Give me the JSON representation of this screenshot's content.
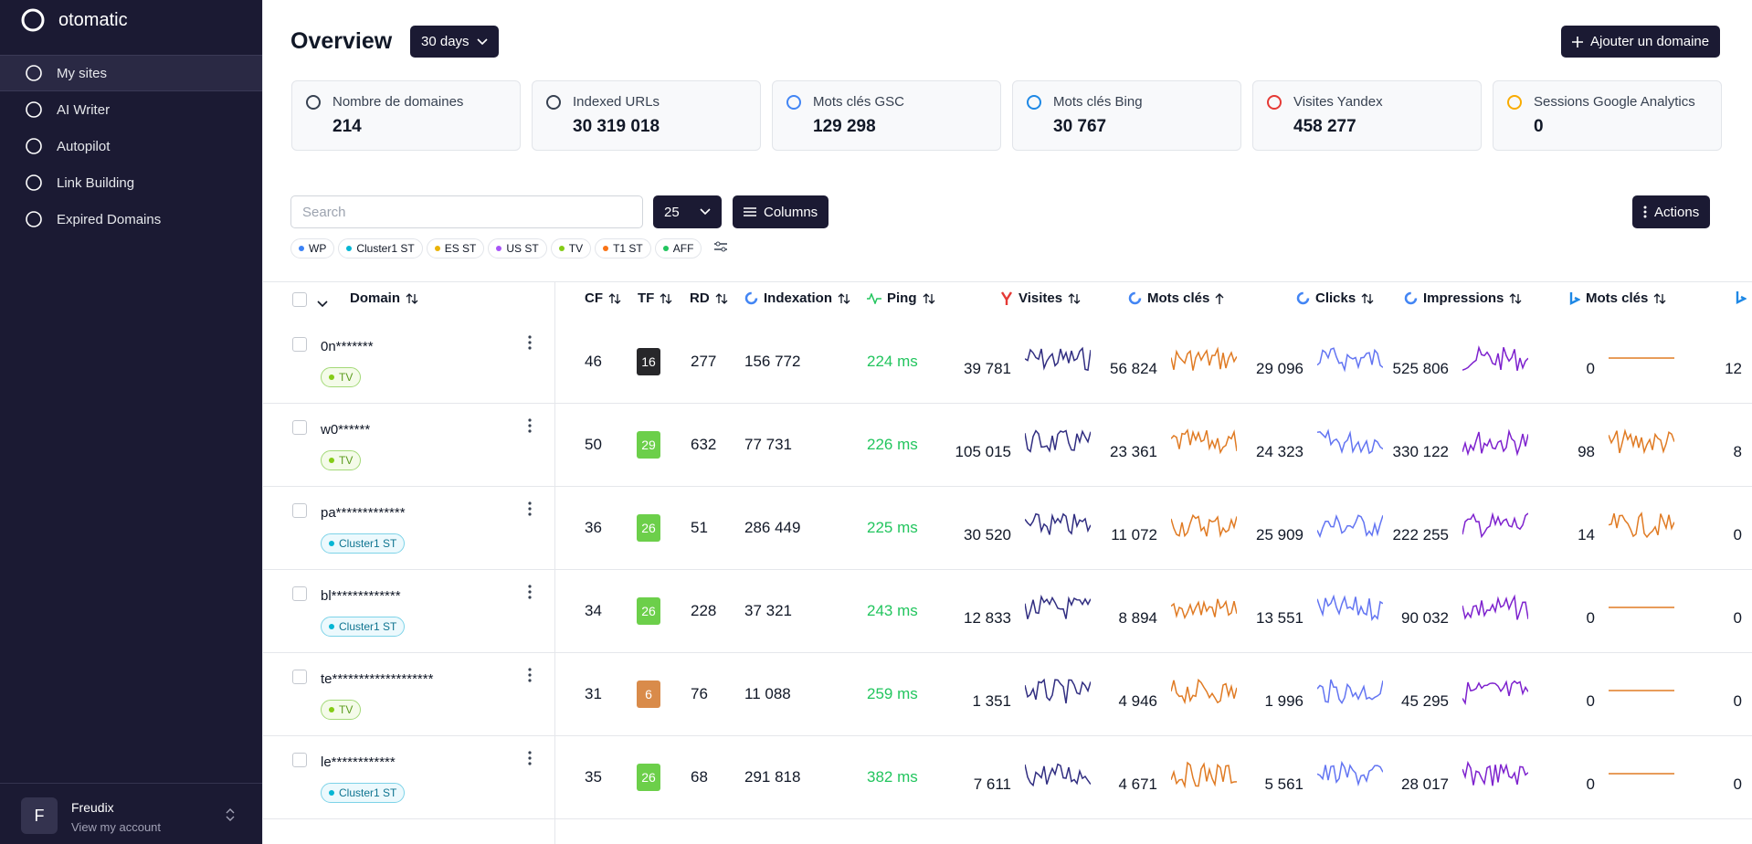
{
  "sidebar": {
    "brand": "otomatic",
    "nav": [
      "My sites",
      "AI Writer",
      "Autopilot",
      "Link Building",
      "Expired Domains"
    ],
    "user": {
      "initial": "F",
      "name": "Freudix",
      "link": "View my account"
    }
  },
  "header": {
    "title": "Overview",
    "period": "30 days",
    "add_button": "Ajouter un domaine"
  },
  "stats": [
    {
      "label": "Nombre de domaines",
      "value": "214"
    },
    {
      "label": "Indexed URLs",
      "value": "30 319 018"
    },
    {
      "label": "Mots clés GSC",
      "value": "129 298"
    },
    {
      "label": "Mots clés Bing",
      "value": "30 767"
    },
    {
      "label": "Visites Yandex",
      "value": "458 277"
    },
    {
      "label": "Sessions Google Analytics",
      "value": "0"
    }
  ],
  "toolbar": {
    "search_placeholder": "Search",
    "page_size": "25",
    "columns_button": "Columns",
    "actions_button": "Actions"
  },
  "filters": [
    {
      "label": "WP",
      "color": "#3b82f6"
    },
    {
      "label": "Cluster1 ST",
      "color": "#06b6d4"
    },
    {
      "label": "ES ST",
      "color": "#eab308"
    },
    {
      "label": "US ST",
      "color": "#a855f7"
    },
    {
      "label": "TV",
      "color": "#84cc16"
    },
    {
      "label": "T1 ST",
      "color": "#f97316"
    },
    {
      "label": "AFF",
      "color": "#22c55e"
    }
  ],
  "table": {
    "columns": [
      "Domain",
      "CF",
      "TF",
      "RD",
      "Indexation",
      "Ping",
      "Visites",
      "Mots clés",
      "Clicks",
      "Impressions",
      "Mots clés"
    ],
    "rows": [
      {
        "domain": "0n*******",
        "tag": "TV",
        "cf": 46,
        "tf": 16,
        "tf_color": "#27272a",
        "rd": 277,
        "indexation": "156 772",
        "ping": "224 ms",
        "visites": "39 781",
        "mots_cles": "56 824",
        "clicks": "29 096",
        "impressions": "525 806",
        "bing_mots_cles": 0,
        "next": 12
      },
      {
        "domain": "w0******",
        "tag": "TV",
        "cf": 50,
        "tf": 29,
        "tf_color": "#6ccf4a",
        "rd": 632,
        "indexation": "77 731",
        "ping": "226 ms",
        "visites": "105 015",
        "mots_cles": "23 361",
        "clicks": "24 323",
        "impressions": "330 122",
        "bing_mots_cles": 98,
        "next": 8
      },
      {
        "domain": "pa*************",
        "tag": "Cluster1 ST",
        "cf": 36,
        "tf": 26,
        "tf_color": "#6ccf4a",
        "rd": 51,
        "indexation": "286 449",
        "ping": "225 ms",
        "visites": "30 520",
        "mots_cles": "11 072",
        "clicks": "25 909",
        "impressions": "222 255",
        "bing_mots_cles": 14,
        "next": 0
      },
      {
        "domain": "bl*************",
        "tag": "Cluster1 ST",
        "cf": 34,
        "tf": 26,
        "tf_color": "#6ccf4a",
        "rd": 228,
        "indexation": "37 321",
        "ping": "243 ms",
        "visites": "12 833",
        "mots_cles": "8 894",
        "clicks": "13 551",
        "impressions": "90 032",
        "bing_mots_cles": 0,
        "next": 0
      },
      {
        "domain": "te*******************",
        "tag": "TV",
        "cf": 31,
        "tf": 6,
        "tf_color": "#d98b4a",
        "rd": 76,
        "indexation": "11 088",
        "ping": "259 ms",
        "visites": "1 351",
        "mots_cles": "4 946",
        "clicks": "1 996",
        "impressions": "45 295",
        "bing_mots_cles": 0,
        "next": 0
      },
      {
        "domain": "le************",
        "tag": "Cluster1 ST",
        "cf": 35,
        "tf": 26,
        "tf_color": "#6ccf4a",
        "rd": 68,
        "indexation": "291 818",
        "ping": "382 ms",
        "visites": "7 611",
        "mots_cles": "4 671",
        "clicks": "5 561",
        "impressions": "28 017",
        "bing_mots_cles": 0,
        "next": 0
      }
    ]
  }
}
